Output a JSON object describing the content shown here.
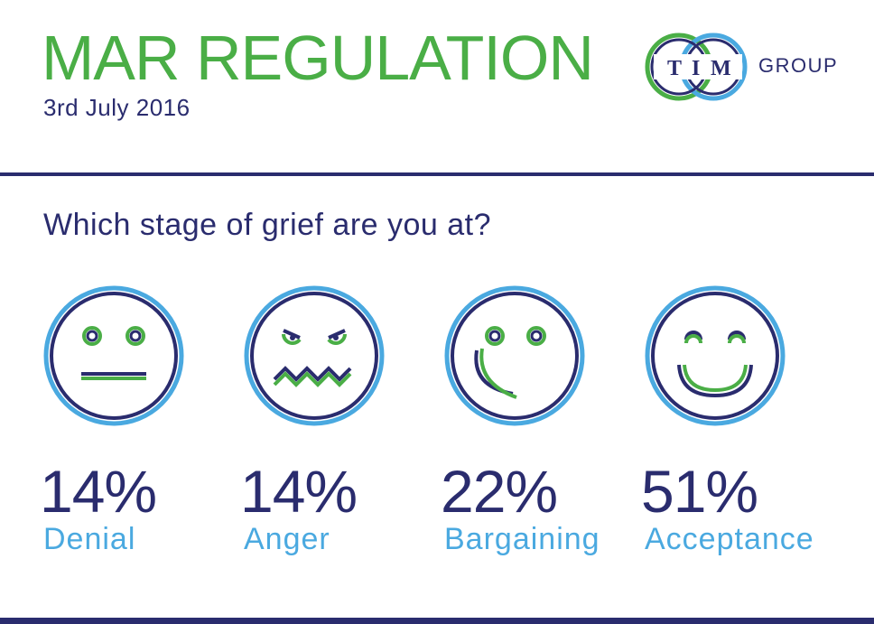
{
  "header": {
    "title": "MAR REGULATION",
    "date": "3rd July 2016"
  },
  "logo": {
    "letters": [
      "T",
      "I",
      "M"
    ],
    "text": "GROUP"
  },
  "question": "Which stage of grief are you at?",
  "stages": [
    {
      "icon": "neutral-face-icon",
      "percent": "14%",
      "label": "Denial"
    },
    {
      "icon": "angry-face-icon",
      "percent": "14%",
      "label": "Anger"
    },
    {
      "icon": "smirk-face-icon",
      "percent": "22%",
      "label": "Bargaining"
    },
    {
      "icon": "happy-face-icon",
      "percent": "51%",
      "label": "Acceptance"
    }
  ],
  "colors": {
    "green": "#4aae46",
    "navy": "#2a2c6e",
    "blue": "#4aa9e0"
  }
}
